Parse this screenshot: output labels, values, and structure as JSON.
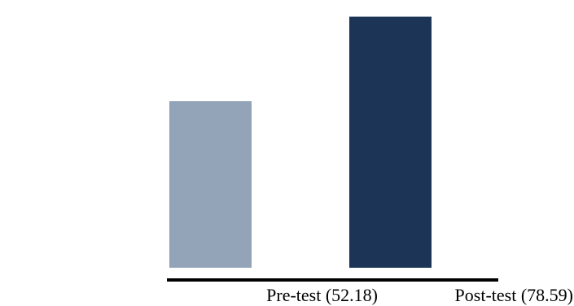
{
  "chart_data": {
    "type": "bar",
    "categories": [
      "Pre-test (52.18)",
      "Post-test (78.59)"
    ],
    "values": [
      52.18,
      78.59
    ],
    "colors": [
      "#93a3b8",
      "#1c3557"
    ],
    "title": "",
    "xlabel": "",
    "ylabel": "",
    "ylim": [
      0,
      80
    ],
    "grid": false,
    "legend": "none"
  },
  "colors": {
    "axis": "#000000",
    "background": "#ffffff"
  }
}
